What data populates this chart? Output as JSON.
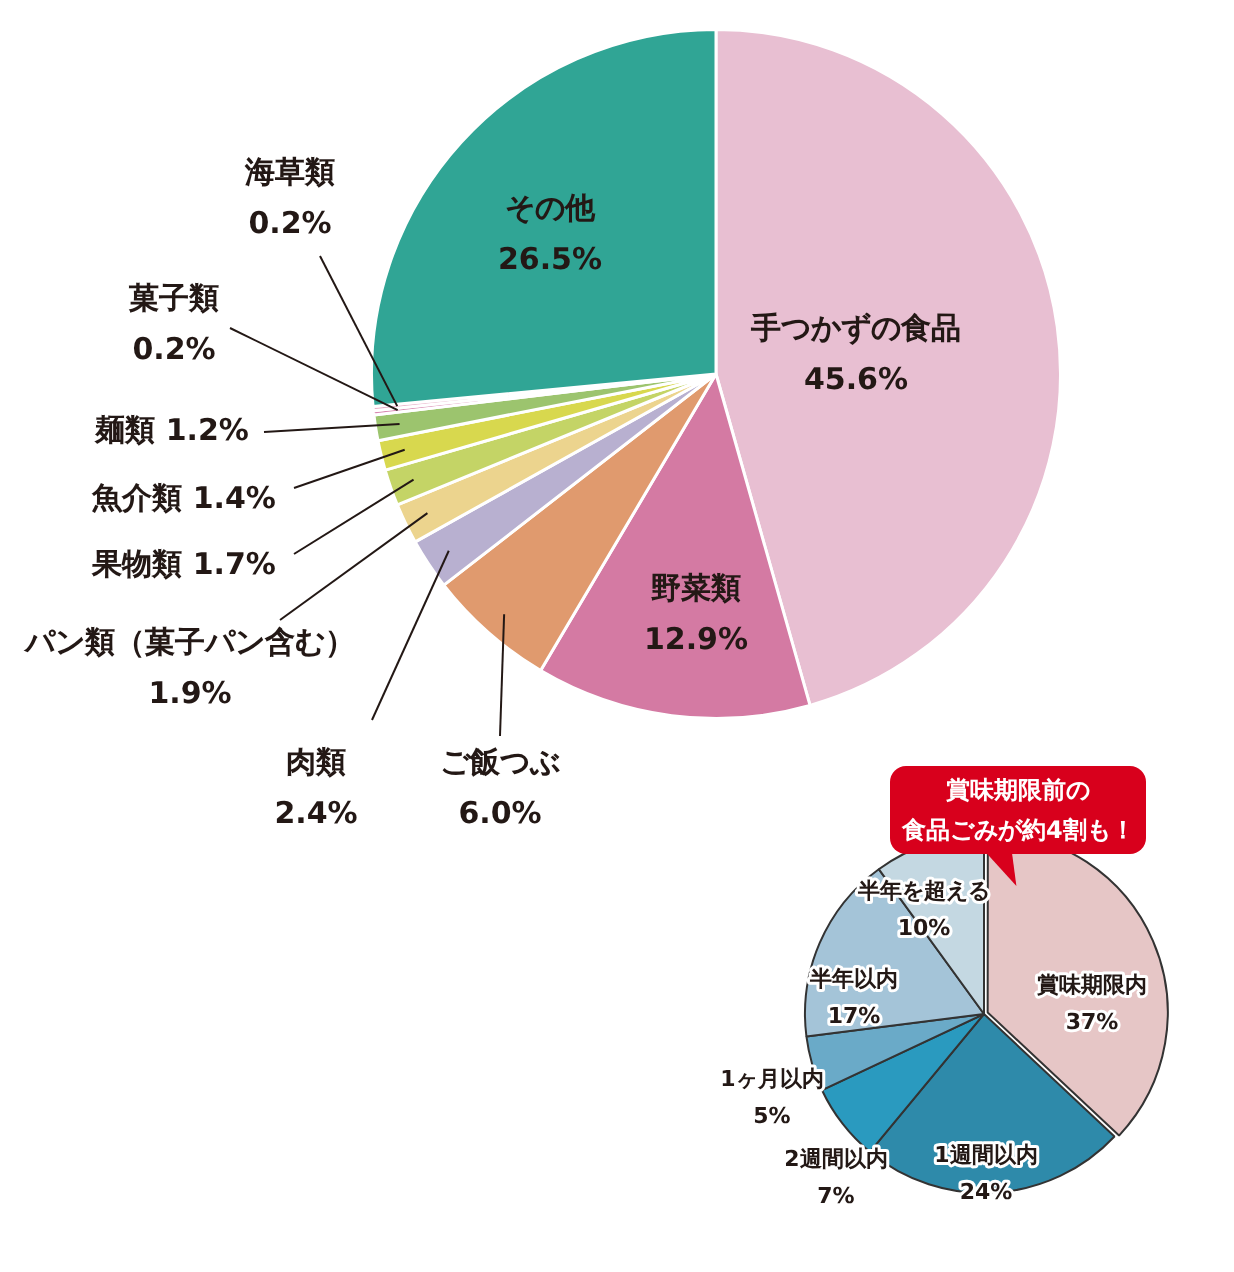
{
  "chart_data": [
    {
      "type": "pie",
      "categories": [
        "手つかずの食品",
        "野菜類",
        "ご飯つぶ",
        "肉類",
        "パン類（菓子パン含む）",
        "果物類",
        "魚介類",
        "麺類",
        "菓子類",
        "海草類",
        "その他"
      ],
      "values": [
        45.6,
        12.9,
        6.0,
        2.4,
        1.9,
        1.7,
        1.4,
        1.2,
        0.2,
        0.2,
        26.5
      ],
      "value_labels": [
        "45.6%",
        "12.9%",
        "6.0%",
        "2.4%",
        "1.9%",
        "1.7%",
        "1.4%",
        "1.2%",
        "0.2%",
        "0.2%",
        "26.5%"
      ],
      "colors": [
        "#e8bfd2",
        "#d47aa3",
        "#e09a6e",
        "#b8b0d0",
        "#ecd48e",
        "#c4d466",
        "#d8d84e",
        "#9cc46e",
        "#d888b0",
        "#e8b0c8",
        "#30a595"
      ],
      "legend": false
    },
    {
      "type": "pie",
      "categories": [
        "賞味期限内",
        "1週間以内",
        "2週間以内",
        "1ヶ月以内",
        "半年以内",
        "半年を超える"
      ],
      "values": [
        37,
        24,
        7,
        5,
        17,
        10
      ],
      "value_labels": [
        "37%",
        "24%",
        "7%",
        "5%",
        "17%",
        "10%"
      ],
      "colors": [
        "#e6c6c6",
        "#2e8aaa",
        "#2a9abf",
        "#6aaac8",
        "#a4c4d8",
        "#c4d8e2"
      ],
      "annotations": [
        "賞味期限前の",
        "食品ごみが約4割も！"
      ],
      "legend": false
    }
  ]
}
